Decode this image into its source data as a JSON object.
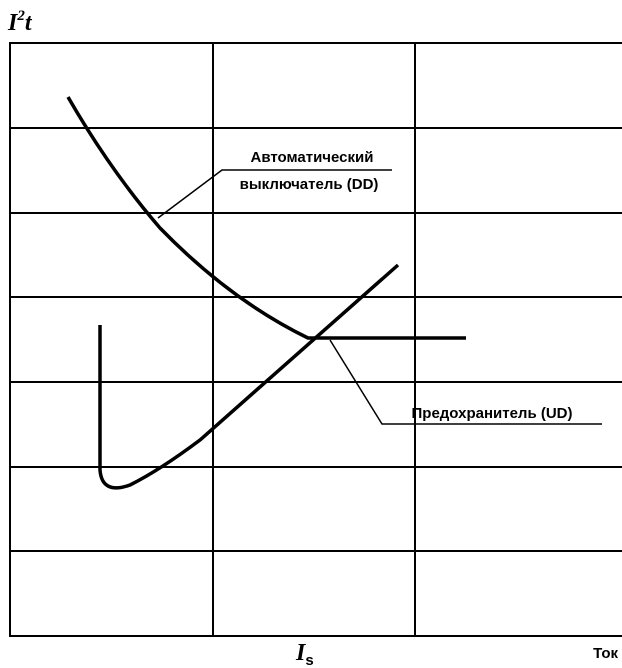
{
  "axes": {
    "y_label": {
      "base": "I",
      "sup": "2",
      "tail": "t"
    },
    "x_label": "Ток",
    "is_label": {
      "base": "I",
      "sub": "s"
    }
  },
  "labels": {
    "breaker": [
      "Автоматический",
      "выключатель (DD)"
    ],
    "fuse": "Предохранитель (UD)"
  }
}
